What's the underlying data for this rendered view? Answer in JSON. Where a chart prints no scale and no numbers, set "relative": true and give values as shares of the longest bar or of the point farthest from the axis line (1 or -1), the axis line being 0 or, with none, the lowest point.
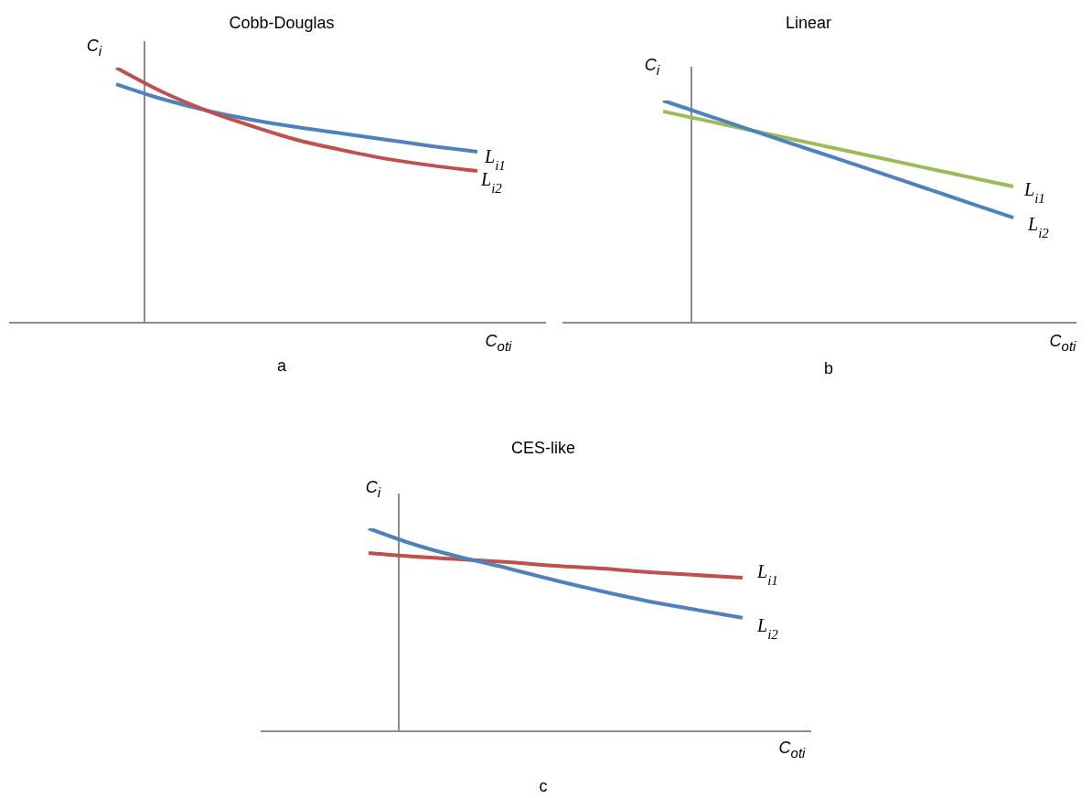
{
  "chart_data": [
    {
      "type": "line",
      "title": "Cobb-Douglas",
      "xlabel": "C$_{oti}$",
      "ylabel": "C$_{i}$",
      "annotations": [
        "a"
      ],
      "relative": true,
      "categories": [
        null,
        null,
        null,
        null,
        null,
        null,
        null,
        null,
        null
      ],
      "series": [
        {
          "name": "L$_{i1}$",
          "color": "#4f81bd",
          "values": [
            0.935,
            0.878,
            0.832,
            0.796,
            0.767,
            0.742,
            0.717,
            0.692,
            0.67
          ]
        },
        {
          "name": "L$_{i2}$",
          "color": "#c0504d",
          "values": [
            1,
            0.907,
            0.832,
            0.771,
            0.717,
            0.677,
            0.642,
            0.616,
            0.595
          ]
        }
      ]
    },
    {
      "type": "line",
      "title": "Linear",
      "xlabel": "C$_{oti}$",
      "ylabel": "C$_{i}$",
      "annotations": [
        "b"
      ],
      "relative": true,
      "categories": [
        null,
        null,
        null,
        null,
        null,
        null,
        null,
        null,
        null
      ],
      "series": [
        {
          "name": "L$_{i1}$",
          "color": "#9bbb59",
          "values": [
            0.951,
            0.909,
            0.866,
            0.824,
            0.782,
            0.74,
            0.697,
            0.655,
            0.613
          ]
        },
        {
          "name": "L$_{i2}$",
          "color": "#4f81bd",
          "values": [
            1,
            0.934,
            0.868,
            0.802,
            0.737,
            0.671,
            0.605,
            0.539,
            0.473
          ]
        }
      ]
    },
    {
      "type": "line",
      "title": "CES-like",
      "xlabel": "C$_{oti}$",
      "ylabel": "C$_{i}$",
      "annotations": [
        "c"
      ],
      "relative": true,
      "categories": [
        null,
        null,
        null,
        null,
        null,
        null,
        null,
        null,
        null
      ],
      "series": [
        {
          "name": "L$_{i1}$",
          "color": "#c0504d",
          "values": [
            0.878,
            0.86,
            0.847,
            0.833,
            0.815,
            0.802,
            0.784,
            0.77,
            0.757
          ]
        },
        {
          "name": "L$_{i2}$",
          "color": "#4f81bd",
          "values": [
            1,
            0.919,
            0.856,
            0.802,
            0.743,
            0.689,
            0.64,
            0.599,
            0.559
          ]
        }
      ]
    }
  ]
}
